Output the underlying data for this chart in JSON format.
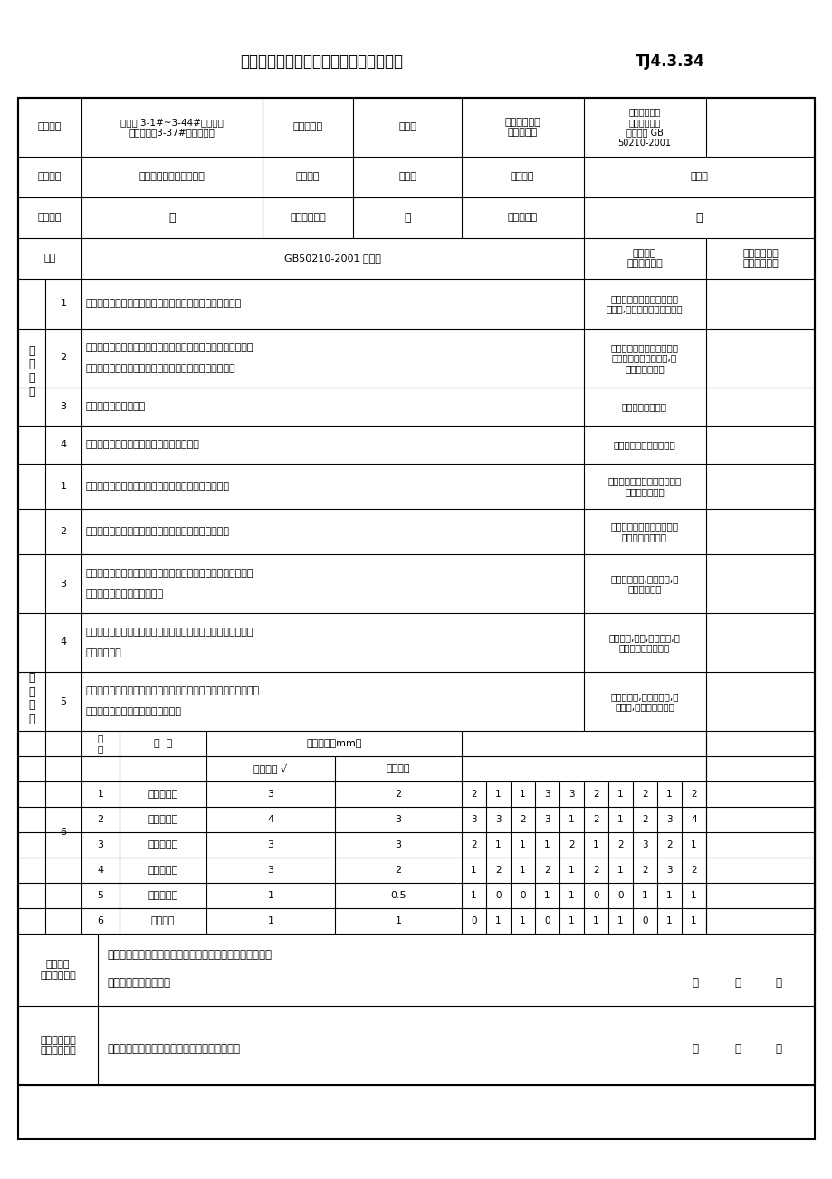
{
  "title": "饰面砖粘贴分项工程检验批质量验收记录",
  "title_code": "TJ4.3.34",
  "proj_name_line1": "翡翠城 3-1#~3-44#住宅楼及",
  "proj_name_line2": "地下车库（3-37#楼开关站）",
  "inspect_part": "南立面",
  "exec_std_line1": "施工执行标准",
  "exec_std_line2": "名称及编号",
  "std_name_lines": [
    "建筑装饰装修",
    "工程施工质量",
    "验收规范 GB",
    "50210-2001"
  ],
  "contractor": "上海市第二建筑有限公司",
  "proj_mgr_label": "项目经理",
  "proj_mgr": "施红兵",
  "foreman_label": "专业工长",
  "foreman": "顾国夫",
  "subcontractor_label": "分包单位",
  "subcontractor": "／",
  "sub_proj_mgr_label": "分包项目经理",
  "sub_proj_mgr": "／",
  "team_lead_label": "施工班组长",
  "team_lead": "／",
  "seq_label": "序号",
  "gb_spec": "GB50210-2001 的规定",
  "check_label_line1": "施工单位",
  "check_label_line2": "检查评定记录",
  "supervisor_label_line1": "监理（建设）",
  "supervisor_label_line2": "单位验收结论",
  "main_ctrl_label": "主\n控\n项\n目",
  "general_label": "一\n般\n项\n目",
  "main_items": [
    {
      "no": "1",
      "spec": "饰面砖的品种、规格、图案、颜色和性能应符合设计要求。",
      "spec2": "",
      "result": "饰面砖颜色、图案和性能符\n合设计,有合格证、检测报告。"
    },
    {
      "no": "2",
      "spec": "饰面砖粘贴工程的找平、防水、粘结和勾缝材料及施工方法应符",
      "spec2": "合设计要求及国家现行产品标准和工程技术标准的规定。",
      "result": "施工工序过程及施工方法符\n合设计及有关标准要求,所\n用材料均合格。"
    },
    {
      "no": "3",
      "spec": "饰面砖粘贴必须牢固。",
      "spec2": "",
      "result": "饰面砖粘贴牢固。"
    },
    {
      "no": "4",
      "spec": "满粘法施工的饰面砖工程应无空鼓、裂缝。",
      "spec2": "",
      "result": "经检查无空鼓、无裂缝。"
    }
  ],
  "general_items": [
    {
      "no": "1",
      "spec": "饰面砖表面应平整、洁净、色泽一致，无裂痕和缺损。",
      "spec2": "",
      "result": "表面平整、洁净、色泽一致，\n无裂痕和缺损。"
    },
    {
      "no": "2",
      "spec": "阴阳角处搭接方式、非整砖使用部位应符合设计要求。",
      "spec2": "",
      "result": "阴阳角处搭接方式、半砖使\n用部位符合要求。"
    },
    {
      "no": "3",
      "spec": "墙面突出物周围的饰面砖应整砖套割吻合，边缘应整齐。墙裙、",
      "spec2": "贴脸突出墙面的厚度应一致。",
      "result": "整砖套割吻合,边缘整齐,突\n出厚度一致。"
    },
    {
      "no": "4",
      "spec": "饰面砖接缝应平直、光滑，填嵌应连续、密实；宽度和深度应符",
      "spec2": "合设计要求。",
      "result": "接缝平直,光滑,连续密实,宽\n度和深度符合要求。"
    },
    {
      "no": "5",
      "spec": "有排水要求的部位应做滴水线（槽）。滴水线（槽）应顺直，流水",
      "spec2": "坡向应正确。坡度应符合设计要求。",
      "result": "做有滴水线,滴水线顺直,坡\n向正确,坡度符合要求。"
    }
  ],
  "measure_header": [
    "项\n次",
    "项  目",
    "外墙面砖 √",
    "内墙面砖"
  ],
  "measure_tolerance_label": "允许偏差（mm）",
  "measure_rows": [
    {
      "no": "1",
      "name": "立面垂直度",
      "outer": "3",
      "inner": "2",
      "vals": [
        2,
        1,
        1,
        3,
        3,
        2,
        1,
        2,
        1,
        2
      ]
    },
    {
      "no": "2",
      "name": "表面平整度",
      "outer": "4",
      "inner": "3",
      "vals": [
        3,
        3,
        2,
        3,
        1,
        2,
        1,
        2,
        3,
        4
      ]
    },
    {
      "no": "3",
      "name": "阴阳角方正",
      "outer": "3",
      "inner": "3",
      "vals": [
        2,
        1,
        1,
        1,
        2,
        1,
        2,
        3,
        2,
        1
      ]
    },
    {
      "no": "4",
      "name": "接缝直线度",
      "outer": "3",
      "inner": "2",
      "vals": [
        1,
        2,
        1,
        2,
        1,
        2,
        1,
        2,
        3,
        2
      ]
    },
    {
      "no": "5",
      "name": "接缝高低差",
      "outer": "1",
      "inner": "0.5",
      "vals": [
        1,
        0,
        0,
        1,
        1,
        0,
        0,
        1,
        1,
        1
      ]
    },
    {
      "no": "6",
      "name": "接缝宽度",
      "outer": "1",
      "inner": "1",
      "vals": [
        0,
        1,
        1,
        0,
        1,
        1,
        1,
        0,
        1,
        1
      ]
    }
  ],
  "eval_title_line1": "施工单位",
  "eval_title_line2": "检查评定结果",
  "eval_line1": "主控项目全部合格，一般项目满足规范要求，本检验批合格",
  "eval_line2": "项目专业质量检查员：",
  "supervisor_title_line1": "监理（建设）",
  "supervisor_title_line2": "单位验收结论",
  "supervisor_line": "监理工程师（建设单位项目专业技术负责人）：",
  "date_year": "年",
  "date_month": "月",
  "date_day": "日"
}
